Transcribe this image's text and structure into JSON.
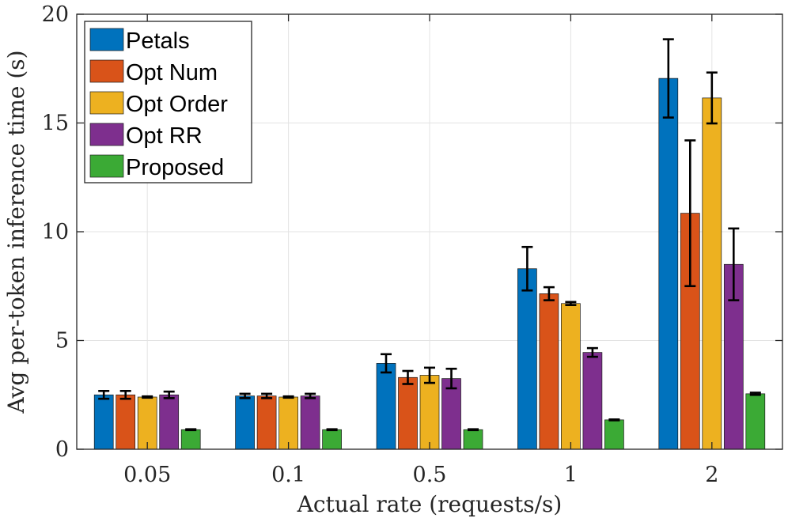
{
  "chart_data": {
    "type": "bar",
    "xlabel": "Actual rate (requests/s)",
    "ylabel": "Avg per-token inference time (s)",
    "ylim": [
      0,
      20
    ],
    "yticks": [
      0,
      5,
      10,
      15,
      20
    ],
    "categories": [
      "0.05",
      "0.1",
      "0.5",
      "1",
      "2"
    ],
    "grid": true,
    "legend_position": "top-left",
    "series": [
      {
        "name": "Petals",
        "color": "#0072BD",
        "values": [
          2.5,
          2.45,
          3.95,
          8.3,
          17.05
        ],
        "errors": [
          0.18,
          0.1,
          0.42,
          1.0,
          1.8
        ]
      },
      {
        "name": "Opt Num",
        "color": "#D95319",
        "values": [
          2.5,
          2.45,
          3.3,
          7.15,
          10.85
        ],
        "errors": [
          0.18,
          0.1,
          0.3,
          0.3,
          3.35
        ]
      },
      {
        "name": "Opt Order",
        "color": "#EDB120",
        "values": [
          2.4,
          2.4,
          3.4,
          6.7,
          16.15
        ],
        "errors": [
          0.03,
          0.03,
          0.35,
          0.07,
          1.17
        ]
      },
      {
        "name": "Opt RR",
        "color": "#7E2F8E",
        "values": [
          2.5,
          2.45,
          3.25,
          4.45,
          8.5
        ],
        "errors": [
          0.15,
          0.1,
          0.45,
          0.2,
          1.65
        ]
      },
      {
        "name": "Proposed",
        "color": "#3BAA35",
        "values": [
          0.9,
          0.9,
          0.9,
          1.35,
          2.55
        ],
        "errors": [
          0.02,
          0.02,
          0.02,
          0.02,
          0.05
        ]
      }
    ]
  }
}
